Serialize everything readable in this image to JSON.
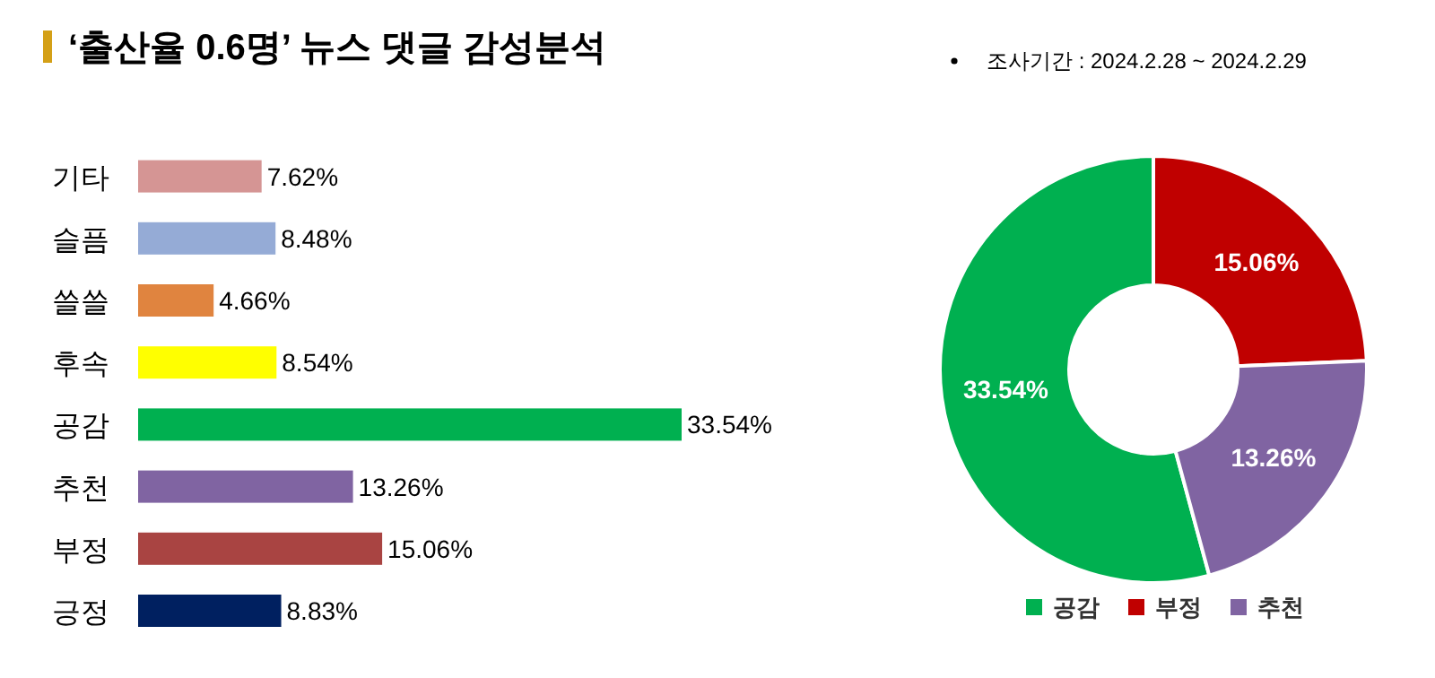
{
  "chart_data": [
    {
      "type": "bar",
      "orientation": "horizontal",
      "title": "‘출산율 0.6명’ 뉴스 댓글 감성분석",
      "categories": [
        "기타",
        "슬픔",
        "쓸쓸",
        "후속",
        "공감",
        "추천",
        "부정",
        "긍정"
      ],
      "values": [
        7.62,
        8.48,
        4.66,
        8.54,
        33.54,
        13.26,
        15.06,
        8.83
      ],
      "value_labels": [
        "7.62%",
        "8.48%",
        "4.66%",
        "8.54%",
        "33.54%",
        "13.26%",
        "15.06%",
        "8.83%"
      ],
      "colors": [
        "#d59594",
        "#95abd6",
        "#e0843f",
        "#ffff00",
        "#00b050",
        "#8064a2",
        "#a94442",
        "#002060"
      ],
      "legend": false
    },
    {
      "type": "donut",
      "annotations": [
        "조사기간 : 2024.2.28 ~ 2024.2.29"
      ],
      "categories": [
        "공감",
        "부정",
        "추천"
      ],
      "values": [
        33.54,
        15.06,
        13.26
      ],
      "value_labels": [
        "33.54%",
        "15.06%",
        "13.26%"
      ],
      "colors": [
        "#00b050",
        "#c00000",
        "#8064a2"
      ],
      "legend": "bottom"
    }
  ]
}
